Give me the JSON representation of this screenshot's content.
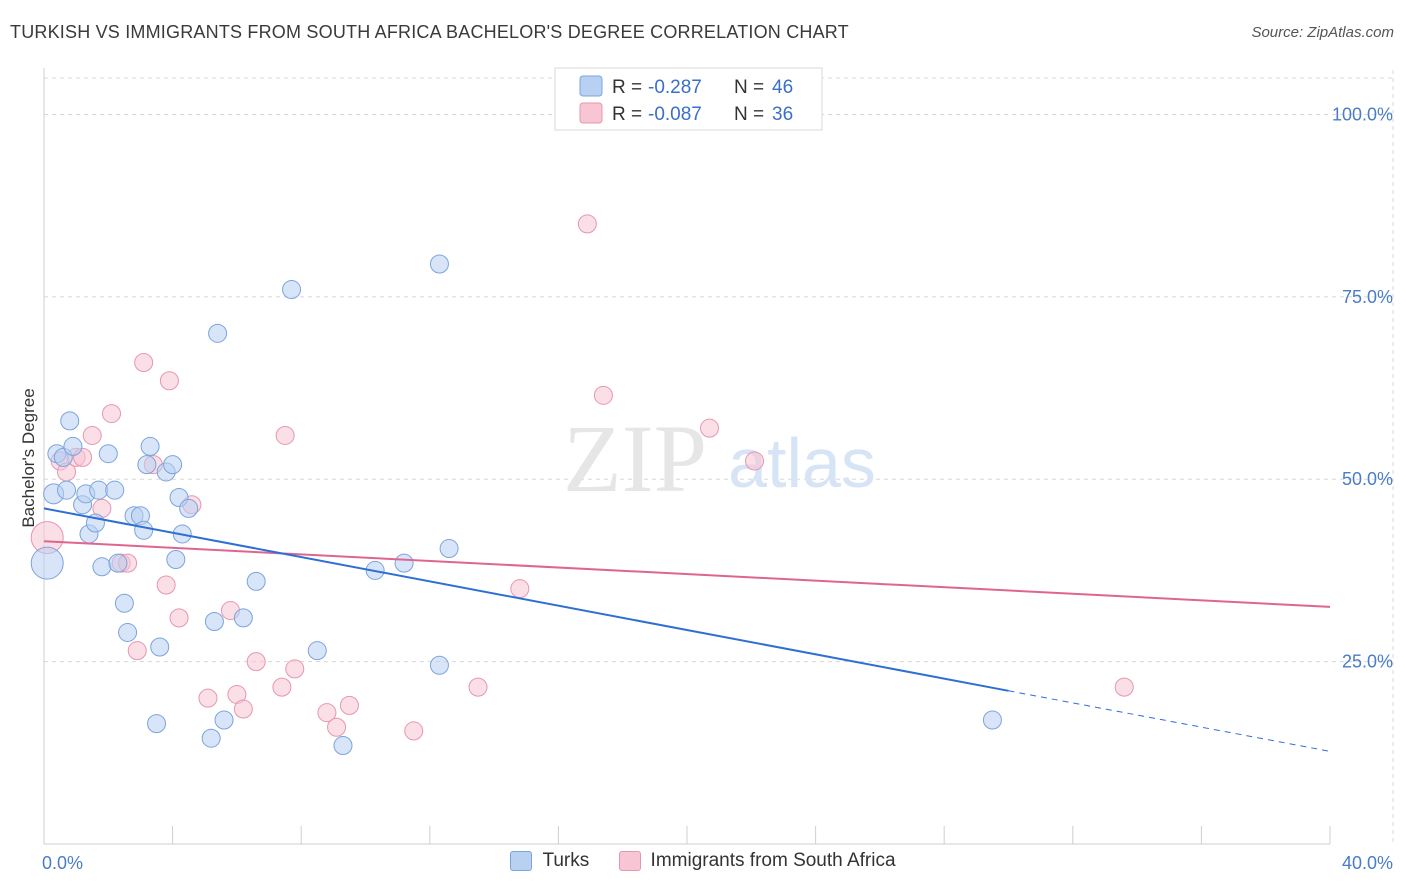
{
  "title": "TURKISH VS IMMIGRANTS FROM SOUTH AFRICA BACHELOR'S DEGREE CORRELATION CHART",
  "source": "Source: ZipAtlas.com",
  "watermark": {
    "zip": "ZIP",
    "atlas": "atlas"
  },
  "colors": {
    "turks_fill": "#b8d0f2",
    "turks_stroke": "#7ba4dc",
    "turks_line": "#2e6fd4",
    "sa_fill": "#f7c5d4",
    "sa_stroke": "#e796b0",
    "sa_line": "#e0658e",
    "grid": "#d8d8d8",
    "axis_text": "#4a7cc9"
  },
  "legend_box": {
    "rows": [
      {
        "r_label": "R =",
        "r_value": "-0.287",
        "n_label": "N =",
        "n_value": "46"
      },
      {
        "r_label": "R =",
        "r_value": "-0.087",
        "n_label": "N =",
        "n_value": "36"
      }
    ]
  },
  "bottom_legend": {
    "turks": "Turks",
    "sa": "Immigrants from South Africa"
  },
  "chart_data": {
    "type": "scatter",
    "title": "TURKISH VS IMMIGRANTS FROM SOUTH AFRICA BACHELOR'S DEGREE CORRELATION CHART",
    "xlabel": "",
    "ylabel": "Bachelor's Degree",
    "xlim": [
      0,
      40
    ],
    "ylim": [
      0,
      105
    ],
    "x_tick_labels": [
      "0.0%",
      "40.0%"
    ],
    "y_ticks": [
      25,
      50,
      75,
      100
    ],
    "y_tick_labels": [
      "25.0%",
      "50.0%",
      "75.0%",
      "100.0%"
    ],
    "grid": true,
    "series": [
      {
        "name": "Turks",
        "R": -0.287,
        "N": 46,
        "trend": {
          "x0": 0,
          "y0": 46.0,
          "x1": 30,
          "y1": 21.0,
          "dash_x1": 40,
          "dash_y1": 12.7
        },
        "points": [
          {
            "x": 0.1,
            "y": 38.5,
            "s": 16
          },
          {
            "x": 0.3,
            "y": 48.0,
            "s": 10
          },
          {
            "x": 0.4,
            "y": 53.5,
            "s": 9
          },
          {
            "x": 0.6,
            "y": 53.0,
            "s": 9
          },
          {
            "x": 0.7,
            "y": 48.5,
            "s": 9
          },
          {
            "x": 0.8,
            "y": 58.0,
            "s": 9
          },
          {
            "x": 0.9,
            "y": 54.5,
            "s": 9
          },
          {
            "x": 1.2,
            "y": 46.5,
            "s": 9
          },
          {
            "x": 1.3,
            "y": 48.0,
            "s": 9
          },
          {
            "x": 1.4,
            "y": 42.5,
            "s": 9
          },
          {
            "x": 1.6,
            "y": 44.0,
            "s": 9
          },
          {
            "x": 1.7,
            "y": 48.5,
            "s": 9
          },
          {
            "x": 1.8,
            "y": 38.0,
            "s": 9
          },
          {
            "x": 2.0,
            "y": 53.5,
            "s": 9
          },
          {
            "x": 2.2,
            "y": 48.5,
            "s": 9
          },
          {
            "x": 2.3,
            "y": 38.5,
            "s": 9
          },
          {
            "x": 2.5,
            "y": 33.0,
            "s": 9
          },
          {
            "x": 2.6,
            "y": 29.0,
            "s": 9
          },
          {
            "x": 2.8,
            "y": 45.0,
            "s": 9
          },
          {
            "x": 3.0,
            "y": 45.0,
            "s": 9
          },
          {
            "x": 3.1,
            "y": 43.0,
            "s": 9
          },
          {
            "x": 3.2,
            "y": 52.0,
            "s": 9
          },
          {
            "x": 3.3,
            "y": 54.5,
            "s": 9
          },
          {
            "x": 3.5,
            "y": 16.5,
            "s": 9
          },
          {
            "x": 3.6,
            "y": 27.0,
            "s": 9
          },
          {
            "x": 3.8,
            "y": 51.0,
            "s": 9
          },
          {
            "x": 4.0,
            "y": 52.0,
            "s": 9
          },
          {
            "x": 4.1,
            "y": 39.0,
            "s": 9
          },
          {
            "x": 4.2,
            "y": 47.5,
            "s": 9
          },
          {
            "x": 4.3,
            "y": 42.5,
            "s": 9
          },
          {
            "x": 4.5,
            "y": 46.0,
            "s": 9
          },
          {
            "x": 5.2,
            "y": 14.5,
            "s": 9
          },
          {
            "x": 5.3,
            "y": 30.5,
            "s": 9
          },
          {
            "x": 5.4,
            "y": 70.0,
            "s": 9
          },
          {
            "x": 5.6,
            "y": 17.0,
            "s": 9
          },
          {
            "x": 6.2,
            "y": 31.0,
            "s": 9
          },
          {
            "x": 6.6,
            "y": 36.0,
            "s": 9
          },
          {
            "x": 7.7,
            "y": 76.0,
            "s": 9
          },
          {
            "x": 8.5,
            "y": 26.5,
            "s": 9
          },
          {
            "x": 9.3,
            "y": 13.5,
            "s": 9
          },
          {
            "x": 10.3,
            "y": 37.5,
            "s": 9
          },
          {
            "x": 11.2,
            "y": 38.5,
            "s": 9
          },
          {
            "x": 12.3,
            "y": 24.5,
            "s": 9
          },
          {
            "x": 12.6,
            "y": 40.5,
            "s": 9
          },
          {
            "x": 12.3,
            "y": 79.5,
            "s": 9
          },
          {
            "x": 29.5,
            "y": 17.0,
            "s": 9
          }
        ]
      },
      {
        "name": "Immigrants from South Africa",
        "R": -0.087,
        "N": 36,
        "trend": {
          "x0": 0,
          "y0": 41.5,
          "x1": 40,
          "y1": 32.5
        },
        "points": [
          {
            "x": 0.1,
            "y": 42.0,
            "s": 16
          },
          {
            "x": 0.5,
            "y": 52.5,
            "s": 9
          },
          {
            "x": 0.7,
            "y": 51.0,
            "s": 9
          },
          {
            "x": 1.0,
            "y": 53.0,
            "s": 9
          },
          {
            "x": 1.2,
            "y": 53.0,
            "s": 9
          },
          {
            "x": 1.5,
            "y": 56.0,
            "s": 9
          },
          {
            "x": 1.8,
            "y": 46.0,
            "s": 9
          },
          {
            "x": 2.1,
            "y": 59.0,
            "s": 9
          },
          {
            "x": 2.4,
            "y": 38.5,
            "s": 9
          },
          {
            "x": 2.6,
            "y": 38.5,
            "s": 9
          },
          {
            "x": 2.9,
            "y": 26.5,
            "s": 9
          },
          {
            "x": 3.1,
            "y": 66.0,
            "s": 9
          },
          {
            "x": 3.4,
            "y": 52.0,
            "s": 9
          },
          {
            "x": 3.8,
            "y": 35.5,
            "s": 9
          },
          {
            "x": 3.9,
            "y": 63.5,
            "s": 9
          },
          {
            "x": 4.2,
            "y": 31.0,
            "s": 9
          },
          {
            "x": 4.6,
            "y": 46.5,
            "s": 9
          },
          {
            "x": 5.1,
            "y": 20.0,
            "s": 9
          },
          {
            "x": 5.8,
            "y": 32.0,
            "s": 9
          },
          {
            "x": 6.0,
            "y": 20.5,
            "s": 9
          },
          {
            "x": 6.2,
            "y": 18.5,
            "s": 9
          },
          {
            "x": 6.6,
            "y": 25.0,
            "s": 9
          },
          {
            "x": 7.4,
            "y": 21.5,
            "s": 9
          },
          {
            "x": 7.5,
            "y": 56.0,
            "s": 9
          },
          {
            "x": 7.8,
            "y": 24.0,
            "s": 9
          },
          {
            "x": 8.8,
            "y": 18.0,
            "s": 9
          },
          {
            "x": 9.1,
            "y": 16.0,
            "s": 9
          },
          {
            "x": 9.5,
            "y": 19.0,
            "s": 9
          },
          {
            "x": 11.5,
            "y": 15.5,
            "s": 9
          },
          {
            "x": 13.5,
            "y": 21.5,
            "s": 9
          },
          {
            "x": 14.8,
            "y": 35.0,
            "s": 9
          },
          {
            "x": 16.9,
            "y": 85.0,
            "s": 9
          },
          {
            "x": 17.4,
            "y": 61.5,
            "s": 9
          },
          {
            "x": 20.7,
            "y": 57.0,
            "s": 9
          },
          {
            "x": 22.1,
            "y": 52.5,
            "s": 9
          },
          {
            "x": 33.6,
            "y": 21.5,
            "s": 9
          }
        ]
      }
    ]
  }
}
